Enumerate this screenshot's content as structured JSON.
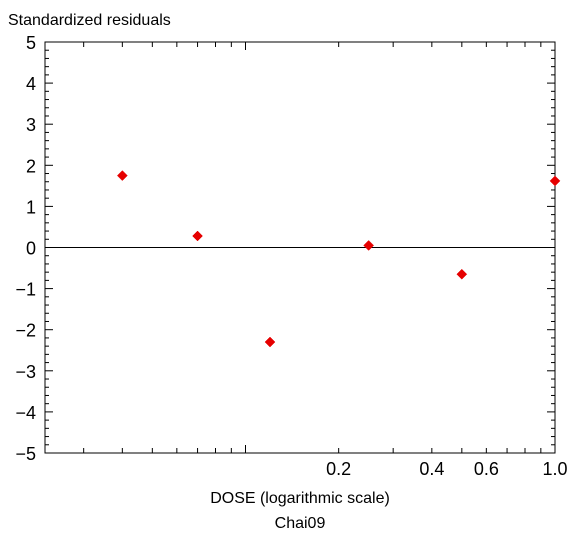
{
  "chart_data": {
    "type": "scatter",
    "title": "",
    "ylabel": "Standardized residuals",
    "xlabel": "DOSE (logarithmic scale)",
    "subtitle": "Chai09",
    "xscale": "log",
    "xlim": [
      0.0225,
      1.0
    ],
    "ylim": [
      -5,
      5
    ],
    "y_ticks": [
      5,
      4,
      3,
      2,
      1,
      0,
      -1,
      -2,
      -3,
      -4,
      -5
    ],
    "x_tick_labels": [
      {
        "value": 0.2,
        "label": "0.2"
      },
      {
        "value": 0.4,
        "label": "0.4"
      },
      {
        "value": 0.6,
        "label": "0.6"
      },
      {
        "value": 1.0,
        "label": "1.0"
      }
    ],
    "reference_line_y": 0,
    "marker_color": "#e60000",
    "marker_shape": "diamond",
    "points": [
      {
        "x": 0.04,
        "y": 1.75
      },
      {
        "x": 0.07,
        "y": 0.28
      },
      {
        "x": 0.12,
        "y": -2.3
      },
      {
        "x": 0.25,
        "y": 0.05
      },
      {
        "x": 0.5,
        "y": -0.65
      },
      {
        "x": 1.0,
        "y": 1.62
      }
    ]
  }
}
